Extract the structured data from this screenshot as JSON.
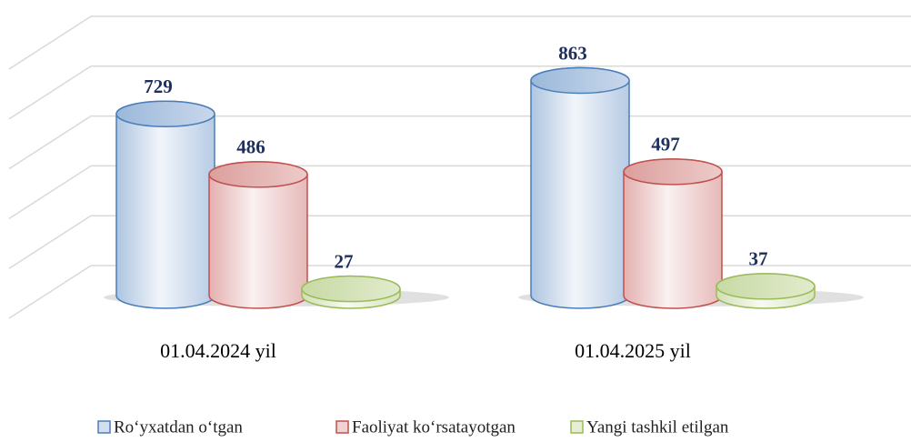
{
  "chart_data": {
    "type": "cylinder",
    "categories": [
      "01.04.2024 yil",
      "01.04.2025 yil"
    ],
    "series": [
      {
        "name": "Ro‘yxatdan o‘tgan",
        "color": "#4a7ebb",
        "values": [
          729,
          863
        ]
      },
      {
        "name": "Faoliyat ko‘rsatayotgan",
        "color": "#c0504d",
        "values": [
          486,
          497
        ]
      },
      {
        "name": "Yangi tashkil etilgan",
        "color": "#9bbb59",
        "values": [
          27,
          37
        ]
      }
    ],
    "ylim": [
      0,
      1000
    ],
    "yticks": [
      0,
      200,
      400,
      600,
      800,
      1000
    ],
    "grid": true,
    "legend": "bottom"
  }
}
